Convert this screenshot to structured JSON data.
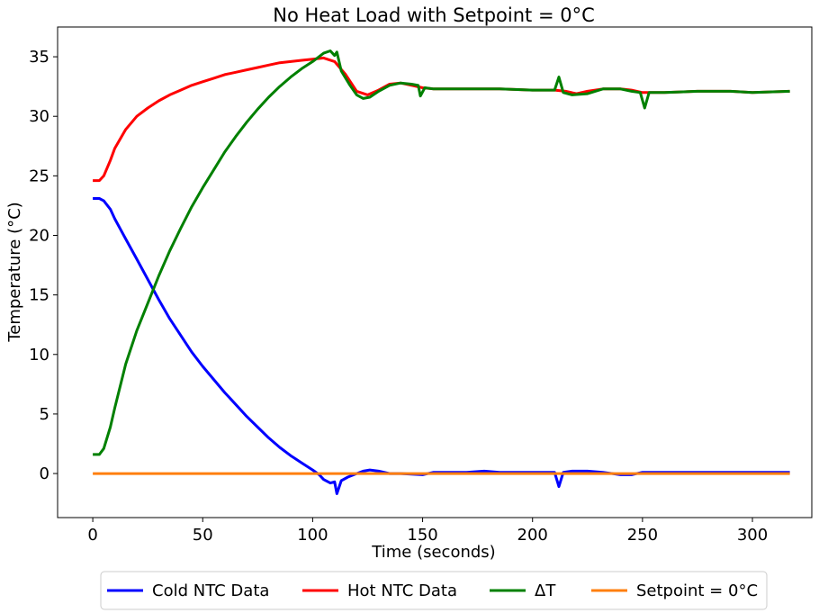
{
  "chart_data": {
    "type": "line",
    "title": "No Heat Load with Setpoint = 0°C",
    "xlabel": "Time (seconds)",
    "ylabel": "Temperature (°C)",
    "xlim": [
      -16,
      327
    ],
    "ylim": [
      -3.7,
      37.5
    ],
    "xticks": [
      0,
      50,
      100,
      150,
      200,
      250,
      300
    ],
    "yticks": [
      0,
      5,
      10,
      15,
      20,
      25,
      30,
      35
    ],
    "grid": false,
    "legend_position": "bottom-center",
    "series": [
      {
        "name": "Cold NTC Data",
        "color": "#0000ff",
        "points": [
          [
            0,
            23.1
          ],
          [
            3,
            23.1
          ],
          [
            5,
            22.9
          ],
          [
            8,
            22.2
          ],
          [
            10,
            21.4
          ],
          [
            15,
            19.7
          ],
          [
            20,
            18.0
          ],
          [
            25,
            16.3
          ],
          [
            30,
            14.6
          ],
          [
            35,
            13.0
          ],
          [
            40,
            11.6
          ],
          [
            45,
            10.2
          ],
          [
            50,
            9.0
          ],
          [
            55,
            7.9
          ],
          [
            60,
            6.8
          ],
          [
            65,
            5.8
          ],
          [
            70,
            4.8
          ],
          [
            75,
            3.9
          ],
          [
            80,
            3.0
          ],
          [
            85,
            2.2
          ],
          [
            90,
            1.5
          ],
          [
            95,
            0.9
          ],
          [
            100,
            0.3
          ],
          [
            103,
            -0.1
          ],
          [
            105,
            -0.5
          ],
          [
            108,
            -0.8
          ],
          [
            110,
            -0.7
          ],
          [
            111,
            -1.7
          ],
          [
            113,
            -0.6
          ],
          [
            116,
            -0.3
          ],
          [
            120,
            0.0
          ],
          [
            123,
            0.2
          ],
          [
            126,
            0.3
          ],
          [
            130,
            0.2
          ],
          [
            135,
            0.0
          ],
          [
            140,
            0.0
          ],
          [
            150,
            -0.1
          ],
          [
            155,
            0.1
          ],
          [
            170,
            0.1
          ],
          [
            178,
            0.2
          ],
          [
            185,
            0.1
          ],
          [
            200,
            0.1
          ],
          [
            210,
            0.1
          ],
          [
            212,
            -1.1
          ],
          [
            214,
            0.1
          ],
          [
            218,
            0.2
          ],
          [
            225,
            0.2
          ],
          [
            232,
            0.1
          ],
          [
            240,
            -0.1
          ],
          [
            245,
            -0.1
          ],
          [
            250,
            0.1
          ],
          [
            270,
            0.1
          ],
          [
            290,
            0.1
          ],
          [
            300,
            0.1
          ],
          [
            317,
            0.1
          ]
        ]
      },
      {
        "name": "Hot NTC Data",
        "color": "#ff0000",
        "points": [
          [
            0,
            24.6
          ],
          [
            3,
            24.6
          ],
          [
            5,
            25.0
          ],
          [
            8,
            26.3
          ],
          [
            10,
            27.3
          ],
          [
            15,
            28.9
          ],
          [
            20,
            30.0
          ],
          [
            25,
            30.7
          ],
          [
            30,
            31.3
          ],
          [
            35,
            31.8
          ],
          [
            40,
            32.2
          ],
          [
            45,
            32.6
          ],
          [
            50,
            32.9
          ],
          [
            55,
            33.2
          ],
          [
            60,
            33.5
          ],
          [
            65,
            33.7
          ],
          [
            70,
            33.9
          ],
          [
            75,
            34.1
          ],
          [
            80,
            34.3
          ],
          [
            85,
            34.5
          ],
          [
            90,
            34.6
          ],
          [
            95,
            34.7
          ],
          [
            100,
            34.8
          ],
          [
            105,
            34.9
          ],
          [
            110,
            34.6
          ],
          [
            115,
            33.5
          ],
          [
            120,
            32.1
          ],
          [
            125,
            31.8
          ],
          [
            130,
            32.2
          ],
          [
            135,
            32.7
          ],
          [
            140,
            32.8
          ],
          [
            145,
            32.6
          ],
          [
            150,
            32.4
          ],
          [
            155,
            32.3
          ],
          [
            170,
            32.3
          ],
          [
            185,
            32.3
          ],
          [
            200,
            32.2
          ],
          [
            210,
            32.2
          ],
          [
            215,
            32.1
          ],
          [
            220,
            31.9
          ],
          [
            225,
            32.1
          ],
          [
            232,
            32.3
          ],
          [
            240,
            32.3
          ],
          [
            245,
            32.2
          ],
          [
            250,
            32.0
          ],
          [
            260,
            32.0
          ],
          [
            275,
            32.1
          ],
          [
            290,
            32.1
          ],
          [
            300,
            32.0
          ],
          [
            317,
            32.1
          ]
        ]
      },
      {
        "name": "ΔT",
        "color": "#008000",
        "points": [
          [
            0,
            1.6
          ],
          [
            3,
            1.6
          ],
          [
            5,
            2.1
          ],
          [
            8,
            3.9
          ],
          [
            10,
            5.5
          ],
          [
            15,
            9.2
          ],
          [
            20,
            12.0
          ],
          [
            25,
            14.3
          ],
          [
            30,
            16.6
          ],
          [
            35,
            18.7
          ],
          [
            40,
            20.6
          ],
          [
            45,
            22.4
          ],
          [
            50,
            24.0
          ],
          [
            55,
            25.5
          ],
          [
            60,
            27.0
          ],
          [
            65,
            28.3
          ],
          [
            70,
            29.5
          ],
          [
            75,
            30.6
          ],
          [
            80,
            31.6
          ],
          [
            85,
            32.5
          ],
          [
            90,
            33.3
          ],
          [
            95,
            34.0
          ],
          [
            100,
            34.6
          ],
          [
            105,
            35.3
          ],
          [
            108,
            35.5
          ],
          [
            110,
            35.1
          ],
          [
            111,
            35.4
          ],
          [
            113,
            33.8
          ],
          [
            117,
            32.6
          ],
          [
            120,
            31.8
          ],
          [
            123,
            31.5
          ],
          [
            126,
            31.6
          ],
          [
            130,
            32.1
          ],
          [
            135,
            32.6
          ],
          [
            140,
            32.8
          ],
          [
            145,
            32.7
          ],
          [
            148,
            32.6
          ],
          [
            149,
            31.7
          ],
          [
            151,
            32.4
          ],
          [
            155,
            32.3
          ],
          [
            170,
            32.3
          ],
          [
            185,
            32.3
          ],
          [
            200,
            32.2
          ],
          [
            210,
            32.2
          ],
          [
            212,
            33.3
          ],
          [
            214,
            32.0
          ],
          [
            218,
            31.8
          ],
          [
            225,
            31.9
          ],
          [
            232,
            32.3
          ],
          [
            240,
            32.3
          ],
          [
            245,
            32.1
          ],
          [
            249,
            32.0
          ],
          [
            251,
            30.7
          ],
          [
            253,
            32.0
          ],
          [
            260,
            32.0
          ],
          [
            275,
            32.1
          ],
          [
            290,
            32.1
          ],
          [
            300,
            32.0
          ],
          [
            317,
            32.1
          ]
        ]
      },
      {
        "name": "Setpoint = 0°C",
        "color": "#ff7f0e",
        "points": [
          [
            0,
            0
          ],
          [
            317,
            0
          ]
        ]
      }
    ]
  }
}
